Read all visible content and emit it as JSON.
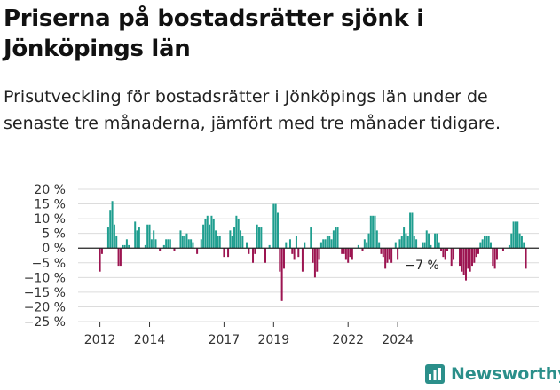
{
  "title": "Priserna på bostadsrätter sjönk i Jönköpings län",
  "subtitle": "Prisutveckling för bostadsrätter i Jönköpings län under de senaste tre månaderna, jämfört med tre månader tidigare.",
  "brand": {
    "name": "Newsworthy",
    "color": "#2b8f8a"
  },
  "chart_data": {
    "type": "bar",
    "title": "",
    "xlabel": "",
    "ylabel": "",
    "y_unit": "%",
    "ylim": [
      -25,
      20
    ],
    "y_ticks": [
      20,
      15,
      10,
      5,
      0,
      -5,
      -10,
      -15,
      -20,
      -25
    ],
    "y_tick_labels": [
      "20 %",
      "15 %",
      "10 %",
      "5 %",
      "0 %",
      "−5 %",
      "−10 %",
      "−15 %",
      "−20 %",
      "−25 %"
    ],
    "x_ticks": [
      "2012",
      "2014",
      "2017",
      "2019",
      "2022",
      "2024"
    ],
    "x_tick_positions": [
      "2012-01",
      "2014-01",
      "2017-01",
      "2019-01",
      "2022-01",
      "2024-01"
    ],
    "positive_color": "#1f9e8f",
    "negative_color": "#9c1551",
    "grid": true,
    "legend": "none",
    "annotation": {
      "text": "−7 %",
      "at": "2024-12"
    },
    "start_month": "2012-01",
    "values": [
      -8,
      -2,
      0,
      0,
      7,
      13,
      16,
      8,
      4,
      -6,
      -6,
      1,
      1,
      3,
      1,
      0,
      0,
      9,
      6,
      7,
      0,
      0,
      1,
      8,
      8,
      3,
      6,
      3,
      0,
      -1,
      0,
      1,
      3,
      3,
      3,
      0,
      -1,
      0,
      0,
      6,
      4,
      4,
      5,
      3,
      3,
      2,
      0,
      -2,
      0,
      3,
      8,
      10,
      11,
      8,
      11,
      10,
      6,
      4,
      4,
      0,
      -3,
      0,
      -3,
      6,
      4,
      7,
      11,
      10,
      6,
      4,
      0,
      2,
      -2,
      0,
      -5,
      -2,
      8,
      7,
      7,
      0,
      -5,
      0,
      1,
      0,
      15,
      15,
      12,
      -8,
      -18,
      -7,
      2,
      0,
      3,
      -2,
      -4,
      4,
      -3,
      0,
      -8,
      2,
      0,
      0,
      7,
      -5,
      -10,
      -8,
      -4,
      2,
      3,
      3,
      4,
      4,
      3,
      6,
      7,
      7,
      0,
      -2,
      -2,
      -4,
      -5,
      -3,
      -4,
      0,
      0,
      1,
      0,
      -1,
      3,
      2,
      5,
      11,
      11,
      11,
      6,
      2,
      -2,
      -3,
      -7,
      -5,
      -4,
      -5,
      0,
      2,
      -4,
      3,
      4,
      7,
      5,
      4,
      12,
      12,
      4,
      3,
      0,
      0,
      2,
      2,
      6,
      5,
      1,
      0,
      5,
      5,
      2,
      -1,
      -3,
      -4,
      -1,
      0,
      -6,
      -4,
      0,
      0,
      -6,
      -8,
      -9,
      -11,
      -7,
      -8,
      -6,
      -5,
      -3,
      -2,
      2,
      3,
      4,
      4,
      4,
      2,
      -6,
      -7,
      -4,
      0,
      0,
      -1,
      0,
      0,
      1,
      5,
      9,
      9,
      9,
      5,
      4,
      2,
      -7
    ]
  }
}
